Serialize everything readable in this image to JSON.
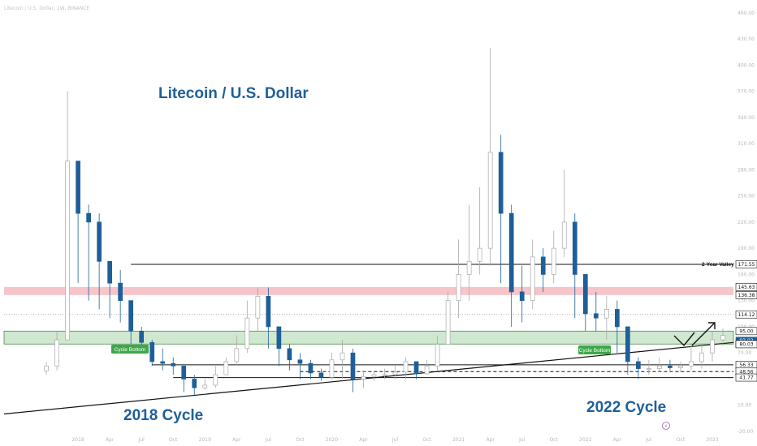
{
  "header": {
    "symbol_line": "Litecoin / U.S. Dollar, 1W, BINANCE"
  },
  "annotations": {
    "main_title": "Litecoin / U.S. Dollar",
    "cycle_2018": "2018 Cycle",
    "cycle_2022": "2022 Cycle",
    "cycle_bottom_left": "Cycle Bottom",
    "cycle_bottom_right": "Cycle Bottom",
    "two_year_valley": "2-Year Valley"
  },
  "colors": {
    "title": "#1f5f99",
    "candle_up": "#a9a9a9",
    "candle_down": "#1f5f99",
    "red_zone": "#f6c5c9",
    "green_zone": "#cfe8cf",
    "badge_green": "#3ea74a",
    "price_label_dark": "#111111",
    "price_label_blue": "#1f5f99"
  },
  "price_labels": [
    {
      "text": "171.55",
      "price": 171.55,
      "style": "dark"
    },
    {
      "text": "145.63",
      "price": 145.63,
      "style": "dark"
    },
    {
      "text": "136.38",
      "price": 136.38,
      "style": "dark"
    },
    {
      "text": "114.12",
      "price": 114.12,
      "style": "dark"
    },
    {
      "text": "95.00",
      "price": 95.0,
      "style": "dark"
    },
    {
      "text": "83.92",
      "price": 83.92,
      "style": "blue"
    },
    {
      "text": "80.18",
      "price": 80.18,
      "style": "dark"
    },
    {
      "text": "80.03",
      "price": 80.03,
      "style": "dark"
    },
    {
      "text": "56.33",
      "price": 56.33,
      "style": "dark"
    },
    {
      "text": "48.56",
      "price": 48.56,
      "style": "dark"
    },
    {
      "text": "41.77",
      "price": 41.77,
      "style": "dark"
    }
  ],
  "price_axis_ticks": [
    "460.00",
    "430.00",
    "400.00",
    "370.00",
    "340.00",
    "310.00",
    "280.00",
    "250.00",
    "220.00",
    "190.00",
    "160.00",
    "130.00",
    "100.00",
    "70.00",
    "40.00",
    "10.00",
    "-20.00"
  ],
  "time_axis_ticks": [
    "2018",
    "Apr",
    "Jul",
    "Oct",
    "2019",
    "Apr",
    "Jul",
    "Oct",
    "2020",
    "Apr",
    "Jul",
    "Oct",
    "2021",
    "Apr",
    "Jul",
    "Oct",
    "2022",
    "Apr",
    "Jul",
    "Oct",
    "2023",
    "Apr",
    "Jul"
  ],
  "chart_data": {
    "type": "candlestick",
    "title": "Litecoin / U.S. Dollar",
    "interval": "1W",
    "ylim": [
      -20,
      470
    ],
    "x": [
      "2017-10",
      "2017-11",
      "2017-12",
      "2018-01",
      "2018-02",
      "2018-03",
      "2018-04",
      "2018-05",
      "2018-06",
      "2018-07",
      "2018-08",
      "2018-09",
      "2018-10",
      "2018-11",
      "2018-12",
      "2019-01",
      "2019-02",
      "2019-03",
      "2019-04",
      "2019-05",
      "2019-06",
      "2019-07",
      "2019-08",
      "2019-09",
      "2019-10",
      "2019-11",
      "2019-12",
      "2020-01",
      "2020-02",
      "2020-03",
      "2020-04",
      "2020-05",
      "2020-06",
      "2020-07",
      "2020-08",
      "2020-09",
      "2020-10",
      "2020-11",
      "2020-12",
      "2021-01",
      "2021-02",
      "2021-03",
      "2021-04",
      "2021-05",
      "2021-06",
      "2021-07",
      "2021-08",
      "2021-09",
      "2021-10",
      "2021-11",
      "2021-12",
      "2022-01",
      "2022-02",
      "2022-03",
      "2022-04",
      "2022-05",
      "2022-06",
      "2022-07",
      "2022-08",
      "2022-09",
      "2022-10",
      "2022-11",
      "2022-12",
      "2023-01",
      "2023-02"
    ],
    "close": [
      55,
      85,
      290,
      230,
      220,
      175,
      150,
      130,
      95,
      82,
      60,
      58,
      55,
      40,
      30,
      33,
      45,
      60,
      75,
      110,
      135,
      100,
      75,
      62,
      58,
      47,
      42,
      62,
      70,
      40,
      43,
      45,
      45,
      48,
      60,
      46,
      55,
      80,
      130,
      160,
      175,
      190,
      300,
      230,
      140,
      130,
      180,
      160,
      190,
      220,
      160,
      115,
      110,
      120,
      100,
      60,
      52,
      52,
      55,
      53,
      55,
      60,
      70,
      85,
      90
    ],
    "high": [
      60,
      95,
      370,
      290,
      240,
      230,
      175,
      165,
      130,
      100,
      85,
      75,
      65,
      55,
      45,
      40,
      55,
      65,
      90,
      130,
      145,
      145,
      100,
      80,
      70,
      62,
      52,
      70,
      85,
      75,
      50,
      48,
      52,
      55,
      65,
      60,
      62,
      90,
      140,
      200,
      240,
      260,
      420,
      320,
      240,
      170,
      200,
      190,
      210,
      280,
      230,
      160,
      140,
      135,
      130,
      100,
      65,
      62,
      65,
      62,
      60,
      80,
      80,
      95,
      98
    ],
    "low": [
      45,
      50,
      85,
      150,
      130,
      120,
      110,
      105,
      80,
      70,
      55,
      50,
      45,
      25,
      22,
      28,
      30,
      45,
      55,
      70,
      95,
      75,
      55,
      50,
      40,
      40,
      38,
      40,
      40,
      25,
      30,
      38,
      40,
      40,
      40,
      40,
      45,
      50,
      80,
      110,
      130,
      160,
      170,
      150,
      100,
      105,
      120,
      140,
      150,
      180,
      110,
      95,
      95,
      85,
      70,
      45,
      40,
      45,
      48,
      50,
      48,
      50,
      52,
      60,
      78
    ]
  },
  "levels": {
    "two_year_valley": 171.55,
    "red_zone": [
      136.38,
      145.63
    ],
    "green_zone": [
      80.18,
      95.0
    ],
    "dotted": 114.12,
    "support_lines": [
      41.77,
      56.33
    ],
    "dashed": 48.56,
    "trendline": [
      {
        "x": "2017-06",
        "y": 0
      },
      {
        "x": "2023-03",
        "y": 82
      }
    ]
  }
}
